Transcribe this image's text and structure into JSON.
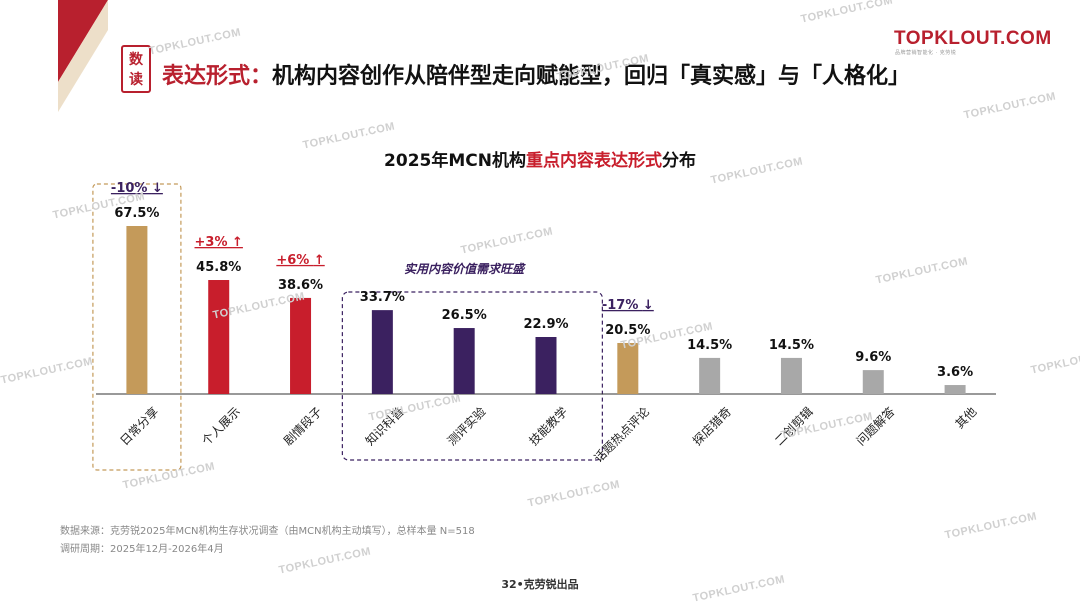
{
  "header": {
    "badge_line1": "数",
    "badge_line2": "读",
    "headline_prefix": "表达形式：",
    "headline_text": "机构内容创作从陪伴型走向赋能型，回归「真实感」与「人格化」",
    "logo_text": "TOPKLOUT.COM",
    "logo_sub": "品牌营销智能化 · 克劳锐",
    "accent_color": "#b8202e"
  },
  "chart_data": {
    "type": "bar",
    "title_prefix": "2025年MCN机构",
    "title_highlight": "重点内容表达形式",
    "title_suffix": "分布",
    "categories": [
      "日常分享",
      "个人展示",
      "剧情段子",
      "知识科普",
      "测评实验",
      "技能教学",
      "话题热点评论",
      "探店猎奇",
      "二创剪辑",
      "问题解答",
      "其他"
    ],
    "values": [
      67.5,
      45.8,
      38.6,
      33.7,
      26.5,
      22.9,
      20.5,
      14.5,
      14.5,
      9.6,
      3.6
    ],
    "value_labels": [
      "67.5%",
      "45.8%",
      "38.6%",
      "33.7%",
      "26.5%",
      "22.9%",
      "20.5%",
      "14.5%",
      "14.5%",
      "9.6%",
      "3.6%"
    ],
    "colors": [
      "#c49a5a",
      "#c81e2c",
      "#c81e2c",
      "#3b2160",
      "#3b2160",
      "#3b2160",
      "#c49a5a",
      "#a8a8a8",
      "#a8a8a8",
      "#a8a8a8",
      "#a8a8a8"
    ],
    "ylim": [
      0,
      75
    ],
    "annotations": [
      {
        "index": 0,
        "text": "-10%",
        "arrow": "↓",
        "color": "#3b2160"
      },
      {
        "index": 1,
        "text": "+3%",
        "arrow": "↑",
        "color": "#c81e2c"
      },
      {
        "index": 2,
        "text": "+6%",
        "arrow": "↑",
        "color": "#c81e2c"
      },
      {
        "index": 6,
        "text": "-17%",
        "arrow": "↓",
        "color": "#3b2160"
      }
    ],
    "group_label": "实用内容价值需求旺盛",
    "group_label_color": "#3b2160"
  },
  "footer": {
    "source": "数据来源：克劳锐2025年MCN机构生存状况调查（由MCN机构主动填写），总样本量 N=518",
    "period": "调研周期：2025年12月-2026年4月",
    "page": "32•克劳锐出品"
  },
  "watermark": "TOPKLOUT.COM"
}
